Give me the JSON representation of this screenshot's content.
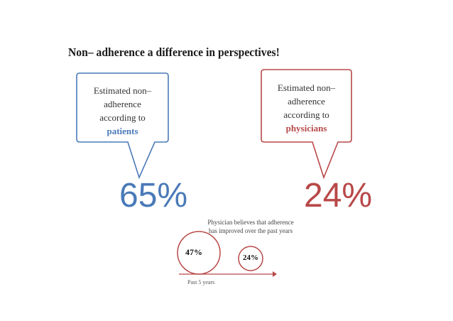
{
  "title": "Non– adherence a difference in perspectives!",
  "colors": {
    "patients": "#4a7ab8",
    "physicians": "#b84848"
  },
  "patients_callout": {
    "lines": [
      "Estimated non–",
      "adherence",
      "according to"
    ],
    "highlight": "patients",
    "value": "65%"
  },
  "physicians_callout": {
    "lines": [
      "Estimated non–",
      "adherence",
      "according to"
    ],
    "highlight": "physicians",
    "value": "24%"
  },
  "trend": {
    "note_line1": "Physician believes that adherence",
    "note_line2": "has  improved over the past years",
    "start_value": "47%",
    "end_value": "24%",
    "axis_label": "Past 5 years"
  }
}
